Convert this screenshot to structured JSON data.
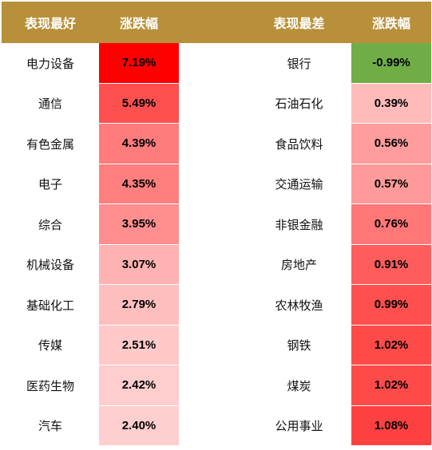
{
  "header": {
    "best_label": "表现最好",
    "best_change_label": "涨跌幅",
    "worst_label": "表现最差",
    "worst_change_label": "涨跌幅",
    "color": "#B8903A"
  },
  "best": [
    {
      "name": "电力设备",
      "change": "7.19%",
      "color": "#FF0000"
    },
    {
      "name": "通信",
      "change": "5.49%",
      "color": "#FF5050"
    },
    {
      "name": "有色金属",
      "change": "4.39%",
      "color": "#FF7C7C"
    },
    {
      "name": "电子",
      "change": "4.35%",
      "color": "#FF7E7E"
    },
    {
      "name": "综合",
      "change": "3.95%",
      "color": "#FF8E8E"
    },
    {
      "name": "机械设备",
      "change": "3.07%",
      "color": "#FFB2B2"
    },
    {
      "name": "基础化工",
      "change": "2.79%",
      "color": "#FFBEBE"
    },
    {
      "name": "传媒",
      "change": "2.51%",
      "color": "#FFC9C9"
    },
    {
      "name": "医药生物",
      "change": "2.42%",
      "color": "#FFCDCD"
    },
    {
      "name": "汽车",
      "change": "2.40%",
      "color": "#FFCECE"
    }
  ],
  "worst": [
    {
      "name": "银行",
      "change": "-0.99%",
      "color": "#70AD47"
    },
    {
      "name": "石油石化",
      "change": "0.39%",
      "color": "#FFBABA"
    },
    {
      "name": "食品饮料",
      "change": "0.56%",
      "color": "#FF9C9C"
    },
    {
      "name": "交通运输",
      "change": "0.57%",
      "color": "#FF9A9A"
    },
    {
      "name": "非银金融",
      "change": "0.76%",
      "color": "#FF7777"
    },
    {
      "name": "房地产",
      "change": "0.91%",
      "color": "#FF5C5C"
    },
    {
      "name": "农林牧渔",
      "change": "0.99%",
      "color": "#FF4F4F"
    },
    {
      "name": "钢铁",
      "change": "1.02%",
      "color": "#FF4A4A"
    },
    {
      "name": "煤炭",
      "change": "1.02%",
      "color": "#FF4A4A"
    },
    {
      "name": "公用事业",
      "change": "1.08%",
      "color": "#FF4040"
    }
  ]
}
